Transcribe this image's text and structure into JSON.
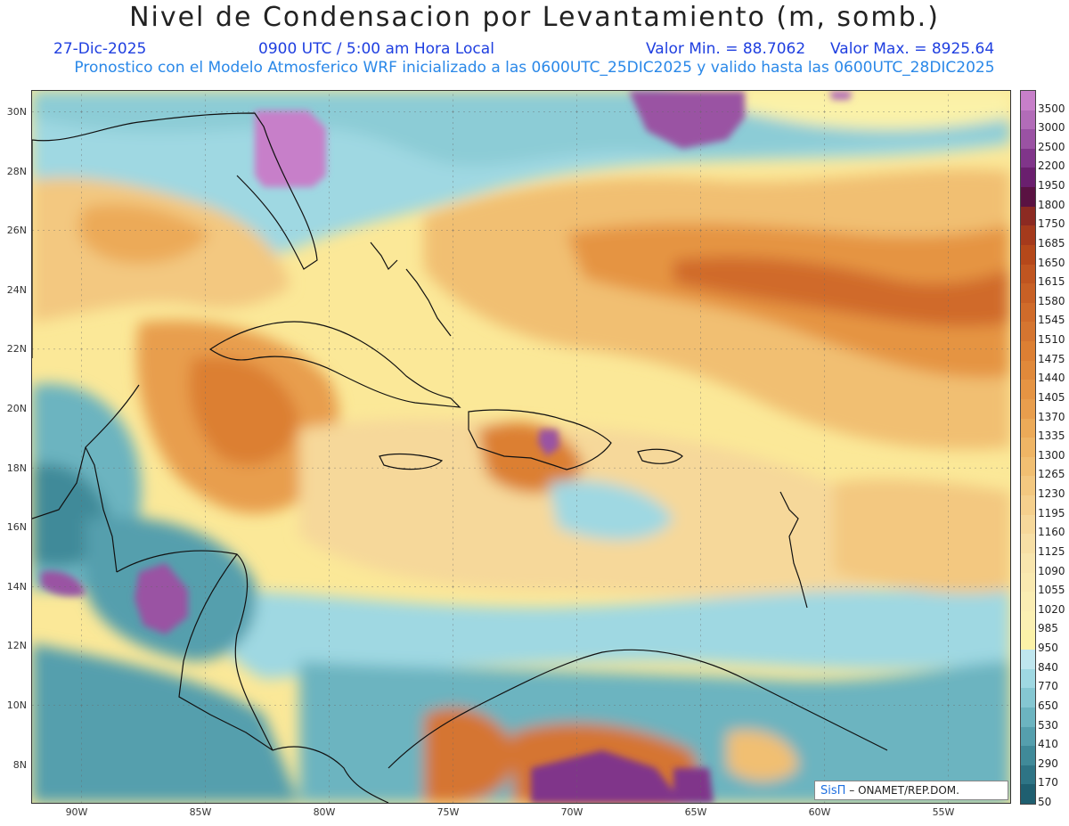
{
  "header": {
    "title": "Nivel de Condensacion por Levantamiento (m, somb.)",
    "date": "27-Dic-2025",
    "time": "0900 UTC / 5:00 am Hora Local",
    "valor_min": "Valor Min. = 88.7062",
    "valor_max": "Valor Max. = 8925.64",
    "model_line": "Pronostico con el Modelo Atmosferico WRF inicializado a las 0600UTC_25DIC2025 y valido hasta las  0600UTC_28DIC2025"
  },
  "map": {
    "lat_labels": [
      "30N",
      "28N",
      "26N",
      "24N",
      "22N",
      "20N",
      "18N",
      "16N",
      "14N",
      "12N",
      "10N",
      "8N"
    ],
    "lon_labels": [
      "90W",
      "85W",
      "80W",
      "75W",
      "70W",
      "65W",
      "60W",
      "55W"
    ],
    "lon_range": [
      -92,
      -52.5
    ],
    "lat_range": [
      6.8,
      30.8
    ],
    "credit_sis": "SisΠ",
    "credit_rest": "– ONAMET/REP.DOM."
  },
  "colorbar": {
    "levels": [
      "3500",
      "3000",
      "2500",
      "2200",
      "1950",
      "1800",
      "1750",
      "1685",
      "1650",
      "1615",
      "1580",
      "1545",
      "1510",
      "1475",
      "1440",
      "1405",
      "1370",
      "1335",
      "1300",
      "1265",
      "1230",
      "1195",
      "1160",
      "1125",
      "1090",
      "1055",
      "1020",
      "985",
      "950",
      "840",
      "770",
      "650",
      "530",
      "410",
      "290",
      "170",
      "50"
    ],
    "colors": [
      "#c77fc9",
      "#b26cb8",
      "#9a52a3",
      "#80358a",
      "#6a1f6e",
      "#5a1242",
      "#8c2a22",
      "#a53a1c",
      "#b5481a",
      "#c05520",
      "#c86025",
      "#d06b2a",
      "#d57530",
      "#dc7f33",
      "#e0893a",
      "#e59443",
      "#e89e4d",
      "#ecaa58",
      "#efb565",
      "#f1bf72",
      "#f3c880",
      "#f5d08d",
      "#f6d89a",
      "#f7dfa5",
      "#f8e5ad",
      "#f9e9b0",
      "#faedb3",
      "#fbf0b3",
      "#fbf2a8",
      "#bfe6ee",
      "#9fd8e2",
      "#85c7d2",
      "#6cb4c0",
      "#559fad",
      "#408a99",
      "#2e7485",
      "#1f5f70"
    ]
  }
}
